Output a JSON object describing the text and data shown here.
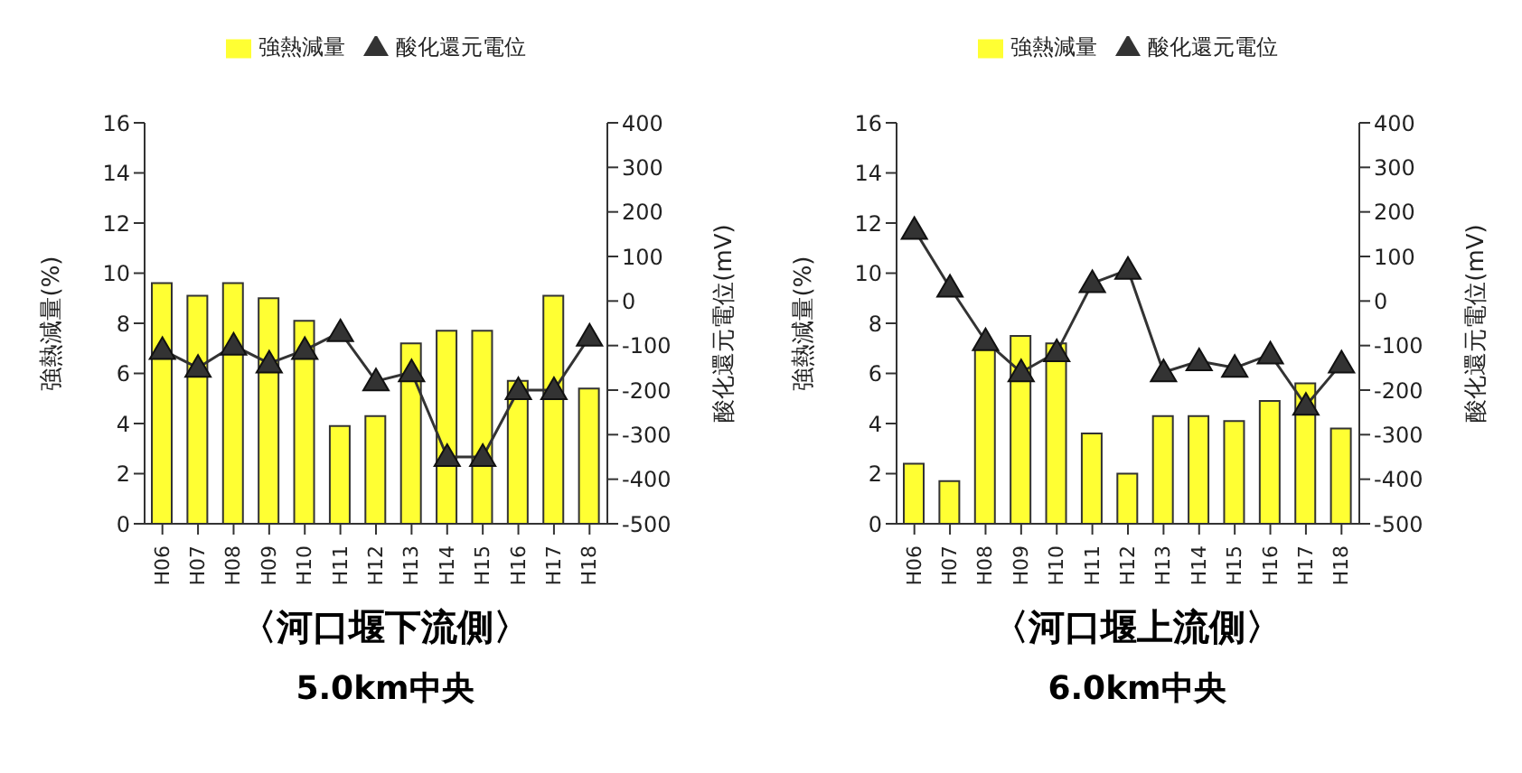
{
  "chart_data": [
    {
      "type": "bar",
      "title": "〈河口堰下流側〉",
      "subtitle": "5.0km中央",
      "ylabel": "強熱減量(%)",
      "y2label": "酸化還元電位(mV)",
      "categories": [
        "H06",
        "H07",
        "H08",
        "H09",
        "H10",
        "H11",
        "H12",
        "H13",
        "H14",
        "H15",
        "H16",
        "H17",
        "H18"
      ],
      "series": [
        {
          "name": "強熱減量",
          "color": "#ffff33",
          "values": [
            9.6,
            9.1,
            9.6,
            9.0,
            8.1,
            3.9,
            4.3,
            7.2,
            7.7,
            7.7,
            5.7,
            9.1,
            5.4
          ]
        },
        {
          "name": "酸化還元電位",
          "type": "line",
          "axis": "y2",
          "color": "#333333",
          "values": [
            -110,
            -150,
            -100,
            -140,
            -110,
            -70,
            -180,
            -160,
            -350,
            -350,
            -200,
            -200,
            -80
          ]
        }
      ],
      "ylim": [
        0,
        16
      ],
      "yticks": [
        0,
        2,
        4,
        6,
        8,
        10,
        12,
        14,
        16
      ],
      "y2lim": [
        -500,
        400
      ],
      "y2ticks": [
        -500,
        -400,
        -300,
        -200,
        -100,
        0,
        100,
        200,
        300,
        400
      ],
      "grid": false,
      "legend": "top",
      "marker": "triangle"
    },
    {
      "type": "bar",
      "title": "〈河口堰上流側〉",
      "subtitle": "6.0km中央",
      "ylabel": "強熱減量(%)",
      "y2label": "酸化還元電位(mV)",
      "categories": [
        "H06",
        "H07",
        "H08",
        "H09",
        "H10",
        "H11",
        "H12",
        "H13",
        "H14",
        "H15",
        "H16",
        "H17",
        "H18"
      ],
      "series": [
        {
          "name": "強熱減量",
          "color": "#ffff33",
          "values": [
            2.4,
            1.7,
            7.0,
            7.5,
            7.2,
            3.6,
            2.0,
            4.3,
            4.3,
            4.1,
            4.9,
            5.6,
            3.8
          ]
        },
        {
          "name": "酸化還元電位",
          "type": "line",
          "axis": "y2",
          "color": "#333333",
          "values": [
            160,
            30,
            -90,
            -160,
            -115,
            40,
            70,
            -160,
            -135,
            -150,
            -120,
            -235,
            -140
          ]
        }
      ],
      "ylim": [
        0,
        16
      ],
      "yticks": [
        0,
        2,
        4,
        6,
        8,
        10,
        12,
        14,
        16
      ],
      "y2lim": [
        -500,
        400
      ],
      "y2ticks": [
        -500,
        -400,
        -300,
        -200,
        -100,
        0,
        100,
        200,
        300,
        400
      ],
      "grid": false,
      "legend": "top",
      "marker": "triangle"
    }
  ]
}
